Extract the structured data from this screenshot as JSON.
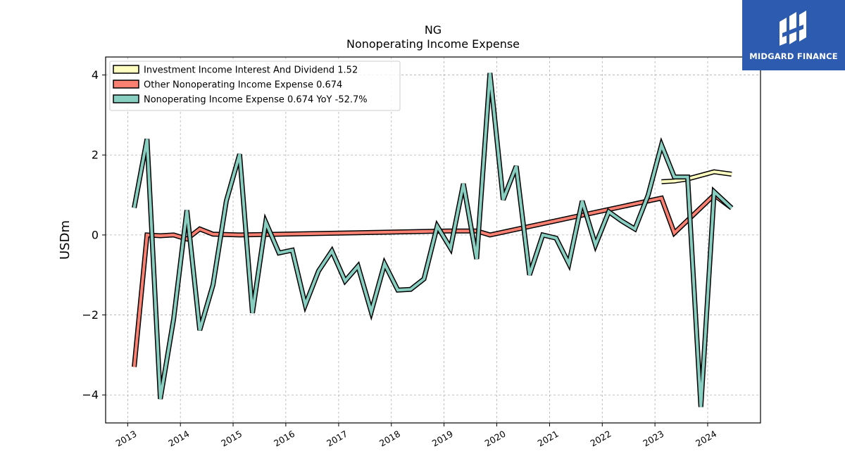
{
  "chart_data": {
    "type": "line",
    "title": "NG",
    "subtitle": "Nonoperating Income Expense",
    "xlabel": "",
    "ylabel": "USDm",
    "x_ticks": [
      "2013",
      "2014",
      "2015",
      "2016",
      "2017",
      "2018",
      "2019",
      "2020",
      "2021",
      "2022",
      "2023",
      "2024"
    ],
    "y_ticks": [
      4,
      2,
      0,
      -2,
      -4
    ],
    "y_tick_labels": [
      "4",
      "2",
      "0",
      "−2",
      "−4"
    ],
    "xlim": [
      "2012-08-01",
      "2025-01-01"
    ],
    "ylim": [
      -4.7,
      4.45
    ],
    "grid": true,
    "legend_position": "top-left",
    "series": [
      {
        "name": "Investment Income Interest And Dividend",
        "legend_label": "Investment Income Interest And Dividend  1.52",
        "color": "#ffffbf",
        "points": [
          {
            "x": "2023-02-15",
            "y": 1.33
          },
          {
            "x": "2023-05-15",
            "y": 1.35
          },
          {
            "x": "2023-08-15",
            "y": 1.4
          },
          {
            "x": "2024-02-15",
            "y": 1.58
          },
          {
            "x": "2024-06-15",
            "y": 1.52
          }
        ]
      },
      {
        "name": "Other Nonoperating Income Expense",
        "legend_label": "Other Nonoperating Income Expense  0.674",
        "color": "#fa8072",
        "points": [
          {
            "x": "2013-02-15",
            "y": -3.3
          },
          {
            "x": "2013-05-15",
            "y": 0.0
          },
          {
            "x": "2013-08-15",
            "y": -0.02
          },
          {
            "x": "2013-11-15",
            "y": 0.0
          },
          {
            "x": "2014-02-15",
            "y": -0.1
          },
          {
            "x": "2014-05-15",
            "y": 0.15
          },
          {
            "x": "2014-08-15",
            "y": 0.02
          },
          {
            "x": "2015-02-15",
            "y": 0.0
          },
          {
            "x": "2019-02-15",
            "y": 0.1
          },
          {
            "x": "2019-08-15",
            "y": 0.1
          },
          {
            "x": "2019-11-15",
            "y": 0.0
          },
          {
            "x": "2022-11-15",
            "y": 0.85
          },
          {
            "x": "2023-02-15",
            "y": 0.92
          },
          {
            "x": "2023-05-15",
            "y": 0.05
          },
          {
            "x": "2024-02-15",
            "y": 1.0
          },
          {
            "x": "2024-06-15",
            "y": 0.674
          }
        ]
      },
      {
        "name": "Nonoperating Income Expense",
        "legend_label": "Nonoperating Income Expense  0.674 YoY -52.7%",
        "color": "#88cfc1",
        "points": [
          {
            "x": "2013-02-15",
            "y": 0.68
          },
          {
            "x": "2013-05-15",
            "y": 2.4
          },
          {
            "x": "2013-08-15",
            "y": -4.1
          },
          {
            "x": "2013-11-15",
            "y": -2.1
          },
          {
            "x": "2014-02-15",
            "y": 0.62
          },
          {
            "x": "2014-05-15",
            "y": -2.38
          },
          {
            "x": "2014-08-15",
            "y": -1.25
          },
          {
            "x": "2014-11-15",
            "y": 0.85
          },
          {
            "x": "2015-02-15",
            "y": 2.02
          },
          {
            "x": "2015-05-15",
            "y": -1.95
          },
          {
            "x": "2015-08-15",
            "y": 0.32
          },
          {
            "x": "2015-11-15",
            "y": -0.45
          },
          {
            "x": "2016-02-15",
            "y": -0.38
          },
          {
            "x": "2016-05-15",
            "y": -1.75
          },
          {
            "x": "2016-08-15",
            "y": -0.9
          },
          {
            "x": "2016-11-15",
            "y": -0.4
          },
          {
            "x": "2017-02-15",
            "y": -1.15
          },
          {
            "x": "2017-05-15",
            "y": -0.78
          },
          {
            "x": "2017-08-15",
            "y": -1.92
          },
          {
            "x": "2017-11-15",
            "y": -0.72
          },
          {
            "x": "2018-02-15",
            "y": -1.38
          },
          {
            "x": "2018-05-15",
            "y": -1.36
          },
          {
            "x": "2018-08-15",
            "y": -1.1
          },
          {
            "x": "2018-11-15",
            "y": 0.22
          },
          {
            "x": "2019-02-15",
            "y": -0.33
          },
          {
            "x": "2019-05-15",
            "y": 1.28
          },
          {
            "x": "2019-08-15",
            "y": -0.6
          },
          {
            "x": "2019-11-15",
            "y": 4.05
          },
          {
            "x": "2020-02-15",
            "y": 0.88
          },
          {
            "x": "2020-05-15",
            "y": 1.72
          },
          {
            "x": "2020-08-15",
            "y": -1.0
          },
          {
            "x": "2020-11-15",
            "y": 0.0
          },
          {
            "x": "2021-02-15",
            "y": -0.08
          },
          {
            "x": "2021-05-15",
            "y": -0.72
          },
          {
            "x": "2021-08-15",
            "y": 0.85
          },
          {
            "x": "2021-11-15",
            "y": -0.25
          },
          {
            "x": "2022-02-15",
            "y": 0.58
          },
          {
            "x": "2022-05-15",
            "y": 0.35
          },
          {
            "x": "2022-08-15",
            "y": 0.15
          },
          {
            "x": "2022-11-15",
            "y": 1.0
          },
          {
            "x": "2023-02-15",
            "y": 2.25
          },
          {
            "x": "2023-05-15",
            "y": 1.45
          },
          {
            "x": "2023-08-15",
            "y": 1.45
          },
          {
            "x": "2023-11-15",
            "y": -4.3
          },
          {
            "x": "2024-02-15",
            "y": 1.08
          },
          {
            "x": "2024-06-15",
            "y": 0.674
          }
        ]
      }
    ]
  },
  "logo": {
    "text": "MIDGARD FINANCE",
    "background": "#2d5bb0"
  }
}
